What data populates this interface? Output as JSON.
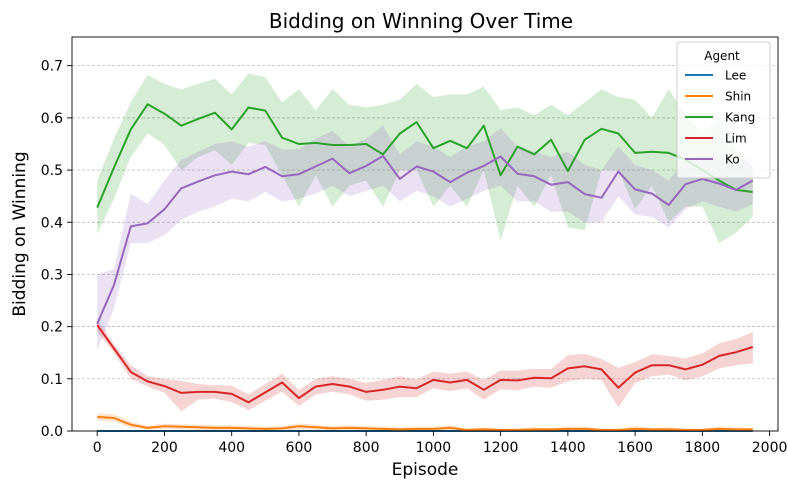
{
  "chart_data": {
    "type": "line",
    "title": "Bidding on Winning Over Time",
    "xlabel": "Episode",
    "ylabel": "Bidding on Winning",
    "xlim": [
      -75,
      2025
    ],
    "ylim": [
      0,
      0.755
    ],
    "xticks": [
      0,
      200,
      400,
      600,
      800,
      1000,
      1200,
      1400,
      1600,
      1800,
      2000
    ],
    "yticks": [
      0.0,
      0.1,
      0.2,
      0.3,
      0.4,
      0.5,
      0.6,
      0.7
    ],
    "ytick_labels": [
      "0.0",
      "0.1",
      "0.2",
      "0.3",
      "0.4",
      "0.5",
      "0.6",
      "0.7"
    ],
    "grid": "horizontal dashed",
    "legend": {
      "title": "Agent",
      "position": "top-right"
    },
    "x": [
      0,
      50,
      100,
      150,
      200,
      250,
      300,
      350,
      400,
      450,
      500,
      550,
      600,
      650,
      700,
      750,
      800,
      850,
      900,
      950,
      1000,
      1050,
      1100,
      1150,
      1200,
      1250,
      1300,
      1350,
      1400,
      1450,
      1500,
      1550,
      1600,
      1650,
      1700,
      1750,
      1800,
      1850,
      1900,
      1950
    ],
    "series": [
      {
        "name": "Lee",
        "color": "#1f77b4",
        "values": [
          0.0,
          0.0,
          0.0,
          0.0,
          0.0,
          0.0,
          0.0,
          0.0,
          0.0,
          0.0,
          0.0,
          0.0,
          0.0,
          0.0,
          0.0,
          0.0,
          0.0,
          0.0,
          0.0,
          0.0,
          0.0,
          0.0,
          0.0,
          0.0,
          0.0,
          0.0,
          0.0,
          0.0,
          0.0,
          0.0,
          0.0,
          0.0,
          0.0,
          0.0,
          0.0,
          0.0,
          0.0,
          0.0,
          0.0,
          0.0
        ],
        "lower": [
          0.0,
          0.0,
          0.0,
          0.0,
          0.0,
          0.0,
          0.0,
          0.0,
          0.0,
          0.0,
          0.0,
          0.0,
          0.0,
          0.0,
          0.0,
          0.0,
          0.0,
          0.0,
          0.0,
          0.0,
          0.0,
          0.0,
          0.0,
          0.0,
          0.0,
          0.0,
          0.0,
          0.0,
          0.0,
          0.0,
          0.0,
          0.0,
          0.0,
          0.0,
          0.0,
          0.0,
          0.0,
          0.0,
          0.0,
          0.0
        ],
        "upper": [
          0.0,
          0.0,
          0.0,
          0.0,
          0.0,
          0.0,
          0.0,
          0.0,
          0.0,
          0.0,
          0.0,
          0.0,
          0.0,
          0.0,
          0.0,
          0.0,
          0.0,
          0.0,
          0.0,
          0.0,
          0.0,
          0.0,
          0.0,
          0.0,
          0.0,
          0.0,
          0.0,
          0.0,
          0.0,
          0.0,
          0.0,
          0.0,
          0.0,
          0.0,
          0.0,
          0.0,
          0.0,
          0.0,
          0.0,
          0.0
        ]
      },
      {
        "name": "Shin",
        "color": "#ff7f0e",
        "values": [
          0.027,
          0.025,
          0.012,
          0.006,
          0.009,
          0.008,
          0.007,
          0.006,
          0.006,
          0.005,
          0.004,
          0.005,
          0.009,
          0.007,
          0.005,
          0.006,
          0.005,
          0.004,
          0.003,
          0.004,
          0.004,
          0.006,
          0.002,
          0.003,
          0.002,
          0.002,
          0.003,
          0.003,
          0.004,
          0.004,
          0.002,
          0.002,
          0.004,
          0.003,
          0.003,
          0.002,
          0.002,
          0.004,
          0.003,
          0.003
        ],
        "lower": [
          0.02,
          0.018,
          0.006,
          0.002,
          0.004,
          0.003,
          0.002,
          0.002,
          0.002,
          0.001,
          0.001,
          0.001,
          0.003,
          0.002,
          0.001,
          0.001,
          0.001,
          0.0,
          0.0,
          0.0,
          0.0,
          0.001,
          0.0,
          0.0,
          0.0,
          0.0,
          0.0,
          0.0,
          0.0,
          0.0,
          0.0,
          0.0,
          0.0,
          0.0,
          0.0,
          0.0,
          0.0,
          0.0,
          0.0,
          0.0
        ],
        "upper": [
          0.034,
          0.032,
          0.018,
          0.01,
          0.014,
          0.013,
          0.012,
          0.011,
          0.011,
          0.009,
          0.008,
          0.009,
          0.015,
          0.012,
          0.009,
          0.011,
          0.009,
          0.008,
          0.007,
          0.008,
          0.008,
          0.011,
          0.005,
          0.007,
          0.005,
          0.005,
          0.007,
          0.006,
          0.008,
          0.008,
          0.005,
          0.005,
          0.009,
          0.006,
          0.007,
          0.005,
          0.005,
          0.008,
          0.007,
          0.006
        ]
      },
      {
        "name": "Kang",
        "color": "#2ca02c",
        "values": [
          0.428,
          0.505,
          0.578,
          0.626,
          0.608,
          0.585,
          0.598,
          0.61,
          0.578,
          0.62,
          0.614,
          0.562,
          0.55,
          0.552,
          0.548,
          0.548,
          0.55,
          0.53,
          0.57,
          0.592,
          0.542,
          0.556,
          0.542,
          0.585,
          0.49,
          0.545,
          0.53,
          0.558,
          0.498,
          0.558,
          0.579,
          0.57,
          0.533,
          0.535,
          0.533,
          0.52,
          0.5,
          0.48,
          0.462,
          0.458
        ],
        "lower": [
          0.378,
          0.445,
          0.525,
          0.57,
          0.548,
          0.5,
          0.525,
          0.538,
          0.51,
          0.552,
          0.548,
          0.49,
          0.43,
          0.49,
          0.43,
          0.47,
          0.48,
          0.43,
          0.5,
          0.5,
          0.43,
          0.47,
          0.43,
          0.5,
          0.365,
          0.47,
          0.43,
          0.49,
          0.39,
          0.385,
          0.5,
          0.5,
          0.425,
          0.47,
          0.4,
          0.43,
          0.43,
          0.36,
          0.38,
          0.41
        ],
        "upper": [
          0.48,
          0.56,
          0.63,
          0.682,
          0.665,
          0.655,
          0.665,
          0.675,
          0.645,
          0.685,
          0.678,
          0.63,
          0.655,
          0.615,
          0.655,
          0.625,
          0.62,
          0.625,
          0.635,
          0.665,
          0.64,
          0.645,
          0.645,
          0.66,
          0.615,
          0.62,
          0.605,
          0.625,
          0.605,
          0.63,
          0.655,
          0.64,
          0.635,
          0.6,
          0.655,
          0.605,
          0.57,
          0.6,
          0.54,
          0.505
        ]
      },
      {
        "name": "Lim",
        "color": "#d62728",
        "values": [
          0.203,
          0.158,
          0.113,
          0.095,
          0.086,
          0.073,
          0.075,
          0.075,
          0.071,
          0.055,
          0.074,
          0.093,
          0.063,
          0.085,
          0.09,
          0.085,
          0.075,
          0.079,
          0.085,
          0.082,
          0.098,
          0.093,
          0.098,
          0.079,
          0.098,
          0.097,
          0.102,
          0.101,
          0.12,
          0.124,
          0.118,
          0.083,
          0.112,
          0.126,
          0.126,
          0.118,
          0.127,
          0.144,
          0.151,
          0.161
        ],
        "lower": [
          0.19,
          0.15,
          0.1,
          0.085,
          0.073,
          0.038,
          0.06,
          0.062,
          0.055,
          0.04,
          0.058,
          0.075,
          0.048,
          0.07,
          0.075,
          0.07,
          0.058,
          0.06,
          0.065,
          0.065,
          0.082,
          0.076,
          0.082,
          0.06,
          0.08,
          0.078,
          0.085,
          0.083,
          0.095,
          0.1,
          0.098,
          0.045,
          0.092,
          0.105,
          0.108,
          0.097,
          0.105,
          0.12,
          0.126,
          0.13
        ],
        "upper": [
          0.216,
          0.166,
          0.126,
          0.105,
          0.1,
          0.096,
          0.09,
          0.088,
          0.087,
          0.07,
          0.09,
          0.11,
          0.078,
          0.1,
          0.105,
          0.1,
          0.092,
          0.098,
          0.105,
          0.099,
          0.114,
          0.11,
          0.114,
          0.098,
          0.116,
          0.116,
          0.119,
          0.119,
          0.145,
          0.148,
          0.138,
          0.121,
          0.132,
          0.147,
          0.144,
          0.139,
          0.149,
          0.168,
          0.176,
          0.19
        ]
      },
      {
        "name": "Ko",
        "color": "#9467bd",
        "values": [
          0.205,
          0.28,
          0.392,
          0.398,
          0.425,
          0.465,
          0.478,
          0.49,
          0.497,
          0.492,
          0.506,
          0.488,
          0.492,
          0.507,
          0.522,
          0.494,
          0.508,
          0.527,
          0.483,
          0.507,
          0.497,
          0.477,
          0.495,
          0.508,
          0.526,
          0.493,
          0.488,
          0.472,
          0.477,
          0.454,
          0.447,
          0.497,
          0.463,
          0.455,
          0.433,
          0.473,
          0.483,
          0.474,
          0.462,
          0.48
        ],
        "lower": [
          0.155,
          0.235,
          0.36,
          0.36,
          0.375,
          0.405,
          0.42,
          0.43,
          0.445,
          0.44,
          0.458,
          0.44,
          0.445,
          0.455,
          0.47,
          0.45,
          0.46,
          0.47,
          0.44,
          0.46,
          0.45,
          0.43,
          0.445,
          0.46,
          0.47,
          0.44,
          0.44,
          0.42,
          0.42,
          0.4,
          0.4,
          0.45,
          0.415,
          0.41,
          0.39,
          0.425,
          0.44,
          0.43,
          0.42,
          0.435
        ],
        "upper": [
          0.3,
          0.31,
          0.455,
          0.435,
          0.48,
          0.52,
          0.535,
          0.55,
          0.555,
          0.545,
          0.555,
          0.54,
          0.54,
          0.56,
          0.575,
          0.545,
          0.56,
          0.585,
          0.53,
          0.555,
          0.545,
          0.525,
          0.545,
          0.555,
          0.58,
          0.545,
          0.535,
          0.525,
          0.535,
          0.51,
          0.5,
          0.545,
          0.51,
          0.5,
          0.48,
          0.52,
          0.53,
          0.52,
          0.51,
          0.525
        ]
      }
    ]
  }
}
